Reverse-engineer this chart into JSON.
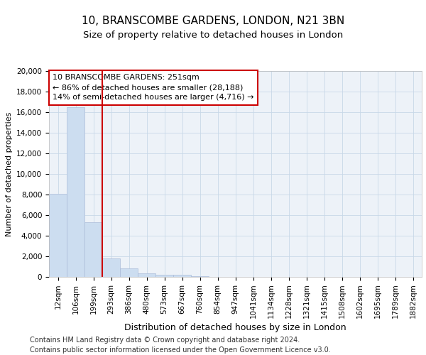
{
  "title": "10, BRANSCOMBE GARDENS, LONDON, N21 3BN",
  "subtitle": "Size of property relative to detached houses in London",
  "xlabel": "Distribution of detached houses by size in London",
  "ylabel": "Number of detached properties",
  "categories": [
    "12sqm",
    "106sqm",
    "199sqm",
    "293sqm",
    "386sqm",
    "480sqm",
    "573sqm",
    "667sqm",
    "760sqm",
    "854sqm",
    "947sqm",
    "1041sqm",
    "1134sqm",
    "1228sqm",
    "1321sqm",
    "1415sqm",
    "1508sqm",
    "1602sqm",
    "1695sqm",
    "1789sqm",
    "1882sqm"
  ],
  "values": [
    8050,
    16500,
    5300,
    1800,
    800,
    350,
    200,
    200,
    100,
    0,
    0,
    0,
    0,
    0,
    0,
    0,
    0,
    0,
    0,
    0,
    0
  ],
  "bar_color": "#ccddf0",
  "bar_edge_color": "#aabbd8",
  "vline_x": 2.5,
  "vline_color": "#cc0000",
  "annotation_text": "10 BRANSCOMBE GARDENS: 251sqm\n← 86% of detached houses are smaller (28,188)\n14% of semi-detached houses are larger (4,716) →",
  "annotation_box_color": "#cc0000",
  "ylim": [
    0,
    20000
  ],
  "yticks": [
    0,
    2000,
    4000,
    6000,
    8000,
    10000,
    12000,
    14000,
    16000,
    18000,
    20000
  ],
  "grid_color": "#c8d8e8",
  "background_color": "#edf2f8",
  "footer_text": "Contains HM Land Registry data © Crown copyright and database right 2024.\nContains public sector information licensed under the Open Government Licence v3.0.",
  "title_fontsize": 11,
  "subtitle_fontsize": 9.5,
  "xlabel_fontsize": 9,
  "ylabel_fontsize": 8,
  "tick_fontsize": 7.5,
  "annotation_fontsize": 8,
  "footer_fontsize": 7
}
